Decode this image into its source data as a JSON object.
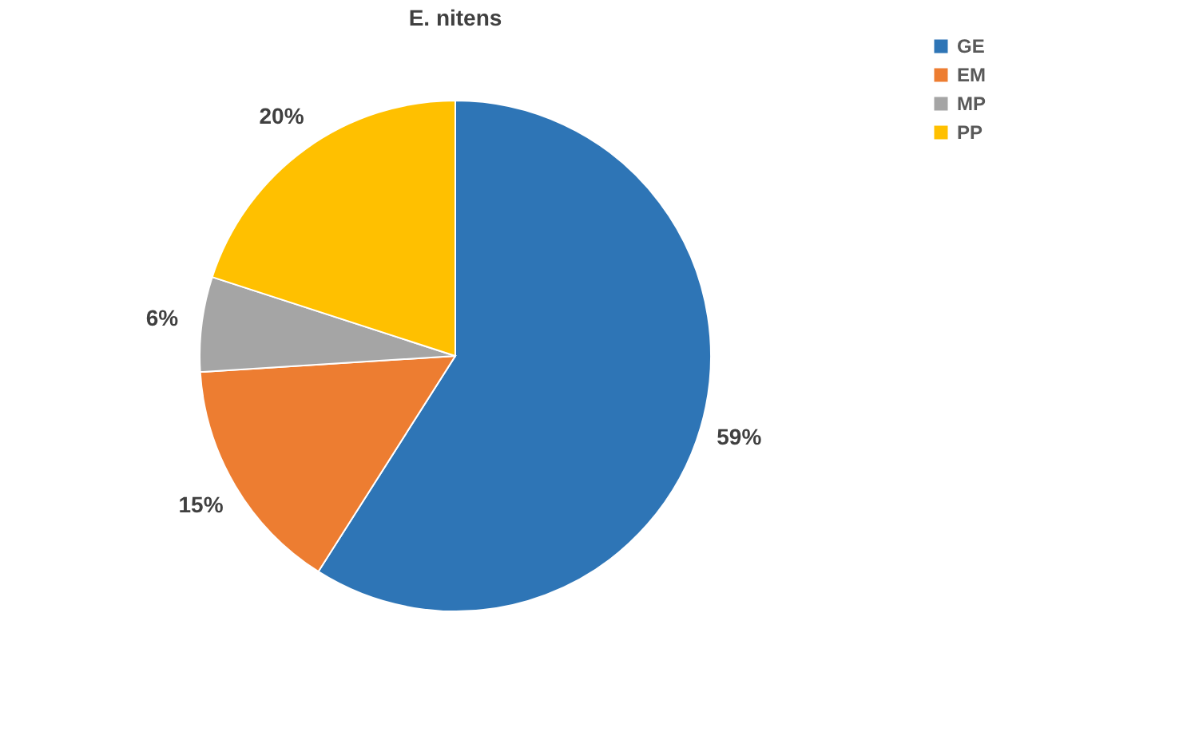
{
  "chart_data": {
    "type": "pie",
    "title": "E. nitens",
    "categories": [
      "GE",
      "EM",
      "MP",
      "PP"
    ],
    "values": [
      59,
      15,
      6,
      20
    ],
    "colors": [
      "#2e75b6",
      "#ed7d31",
      "#a5a5a5",
      "#ffc000"
    ],
    "value_labels": [
      "59%",
      "15%",
      "6%",
      "20%"
    ],
    "legend": "right"
  }
}
